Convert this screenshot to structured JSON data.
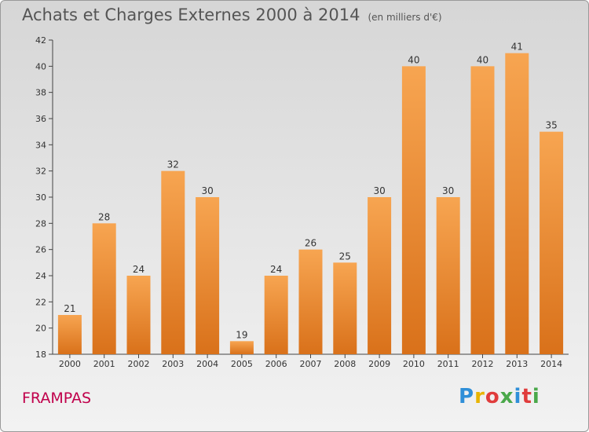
{
  "header": {
    "title": "Achats et Charges Externes 2000 à 2014",
    "unit": "(en milliers d'€)"
  },
  "footer": {
    "commune": "FRAMPAS",
    "logo_text": "Proxiti",
    "logo_colors": [
      "#2f8fd8",
      "#e8b400",
      "#e03c3c",
      "#4aa84a",
      "#2f8fd8",
      "#e03c3c",
      "#4aa84a"
    ]
  },
  "chart_data": {
    "type": "bar",
    "title": "Achats et Charges Externes 2000 à 2014",
    "subtitle": "(en milliers d'€)",
    "xlabel": "",
    "ylabel": "",
    "categories": [
      "2000",
      "2001",
      "2002",
      "2003",
      "2004",
      "2005",
      "2006",
      "2007",
      "2008",
      "2009",
      "2010",
      "2011",
      "2012",
      "2013",
      "2014"
    ],
    "values": [
      21,
      28,
      24,
      32,
      30,
      19,
      24,
      26,
      25,
      30,
      40,
      30,
      40,
      41,
      35
    ],
    "ylim": [
      18,
      42
    ],
    "yticks": [
      18,
      20,
      22,
      24,
      26,
      28,
      30,
      32,
      34,
      36,
      38,
      40,
      42
    ],
    "grid": false,
    "bar_color_top": "#f7a551",
    "bar_color_bottom": "#d9711a"
  }
}
